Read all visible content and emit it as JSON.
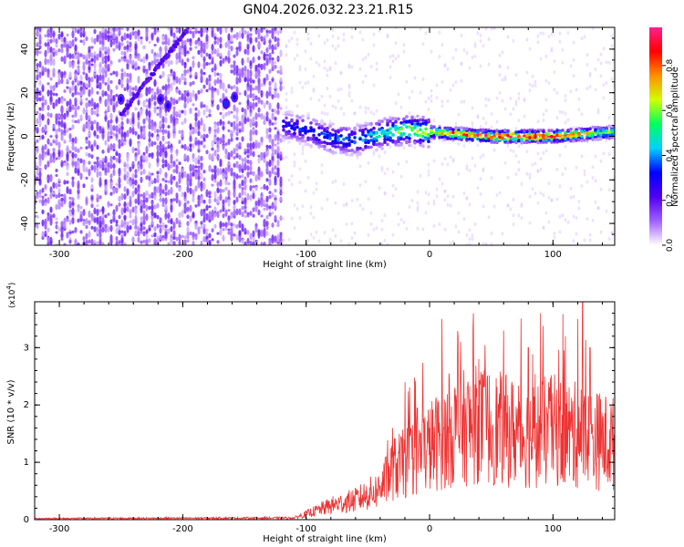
{
  "title": "GN04.2026.032.23.21.R15",
  "chart_data": [
    {
      "type": "heatmap",
      "xlabel": "Height of straight line (km)",
      "ylabel": "Frequency (Hz)",
      "xlim": [
        -320,
        150
      ],
      "ylim": [
        -50,
        50
      ],
      "x_ticks": [
        -300,
        -200,
        -100,
        0,
        100
      ],
      "x_tick_labels": [
        "-300",
        "-200",
        "-100",
        "0",
        "100"
      ],
      "y_ticks": [
        -40,
        -20,
        0,
        20,
        40
      ],
      "y_tick_labels": [
        "-40",
        "-20",
        "0",
        "20",
        "40"
      ],
      "colorbar": {
        "label": "Normalized spectral amplitude",
        "range": [
          0,
          0.97
        ],
        "ticks": [
          0,
          0.2,
          0.4,
          0.6,
          0.8
        ],
        "tick_labels": [
          "0.0",
          "0.2",
          "0.4",
          "0.6",
          "0.8"
        ],
        "colors": [
          "#ffffff",
          "#a060ff",
          "#5000f0",
          "#0000ff",
          "#00d0ff",
          "#00ff60",
          "#d0ff00",
          "#ff9000",
          "#ff0000",
          "#ff2090"
        ]
      },
      "features": {
        "noise_region_x": [
          -320,
          -120
        ],
        "noise_amplitude": 0.15,
        "diagonal_streak": {
          "from": [
            -250,
            10
          ],
          "to": [
            -195,
            50
          ]
        },
        "hotspots": [
          {
            "x": -250,
            "y": 17,
            "amp": 0.3
          },
          {
            "x": -218,
            "y": 17,
            "amp": 0.3
          },
          {
            "x": -212,
            "y": 14,
            "amp": 0.3
          },
          {
            "x": -165,
            "y": 15,
            "amp": 0.35
          },
          {
            "x": -158,
            "y": 18,
            "amp": 0.3
          }
        ],
        "band_center": [
          [
            -120,
            5
          ],
          [
            -100,
            3
          ],
          [
            -80,
            -1
          ],
          [
            -60,
            -2
          ],
          [
            -40,
            1
          ],
          [
            -20,
            3
          ],
          [
            0,
            2
          ],
          [
            50,
            0
          ],
          [
            100,
            0
          ],
          [
            150,
            2
          ]
        ],
        "band_amplitude": [
          [
            -120,
            0.3
          ],
          [
            -90,
            0.35
          ],
          [
            -60,
            0.4
          ],
          [
            -40,
            0.5
          ],
          [
            -20,
            0.6
          ],
          [
            0,
            0.7
          ],
          [
            20,
            0.85
          ],
          [
            60,
            0.95
          ],
          [
            100,
            0.95
          ],
          [
            150,
            0.6
          ]
        ]
      }
    },
    {
      "type": "line",
      "xlabel": "Height of straight line (km)",
      "ylabel": "SNR (10 * v/v)",
      "y_multiplier": "(x10",
      "y_multiplier_exp": "4",
      "y_multiplier_close": ")",
      "xlim": [
        -320,
        150
      ],
      "ylim": [
        0,
        3.8
      ],
      "x_ticks": [
        -300,
        -200,
        -100,
        0,
        100
      ],
      "x_tick_labels": [
        "-300",
        "-200",
        "-100",
        "0",
        "100"
      ],
      "y_ticks": [
        0,
        1,
        2,
        3
      ],
      "y_tick_labels": [
        "0",
        "1",
        "2",
        "3"
      ],
      "color": "#ee3333",
      "envelope": [
        [
          -320,
          0.02
        ],
        [
          -110,
          0.03
        ],
        [
          -100,
          0.1
        ],
        [
          -80,
          0.25
        ],
        [
          -60,
          0.35
        ],
        [
          -40,
          0.55
        ],
        [
          -30,
          0.9
        ],
        [
          -20,
          1.0
        ],
        [
          0,
          1.3
        ],
        [
          20,
          1.6
        ],
        [
          40,
          1.7
        ],
        [
          60,
          1.6
        ],
        [
          80,
          1.5
        ],
        [
          100,
          1.6
        ],
        [
          120,
          1.5
        ],
        [
          150,
          1.35
        ]
      ],
      "peaks": [
        [
          -30,
          1.6
        ],
        [
          -20,
          2.4
        ],
        [
          -10,
          1.95
        ],
        [
          10,
          3.5
        ],
        [
          25,
          3.1
        ],
        [
          40,
          2.8
        ],
        [
          60,
          3.3
        ],
        [
          80,
          3.0
        ],
        [
          90,
          3.6
        ],
        [
          110,
          3.2
        ],
        [
          120,
          3.5
        ],
        [
          124,
          3.8
        ],
        [
          130,
          3.0
        ]
      ]
    }
  ]
}
